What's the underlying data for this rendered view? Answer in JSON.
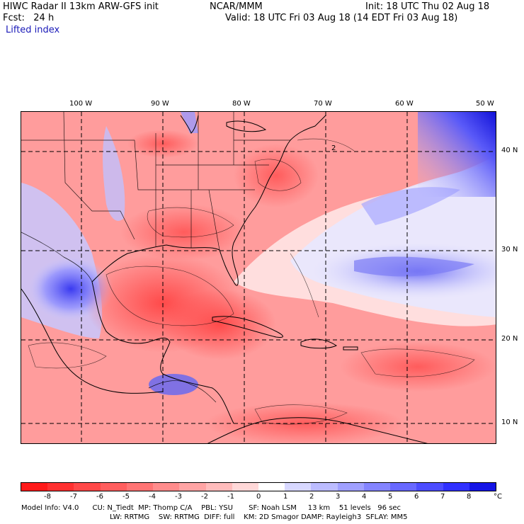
{
  "header": {
    "title": "HIWC Radar II 13km ARW-GFS init",
    "org": "NCAR/MMM",
    "init": "Init: 18 UTC Thu 02 Aug 18",
    "fcst": "Fcst:   24 h",
    "valid": "Valid: 18 UTC Fri 03 Aug 18 (14 EDT Fri 03 Aug 18)",
    "field": "Lifted index"
  },
  "map": {
    "lon_labels": [
      "100 W",
      "90 W",
      "80 W",
      "70 W",
      "60 W",
      "50 W"
    ],
    "lat_labels": [
      "40 N",
      "30 N",
      "20 N",
      "10 N"
    ],
    "contour_label": "2"
  },
  "colorbar": {
    "labels": [
      "-8",
      "-7",
      "-6",
      "-5",
      "-4",
      "-3",
      "-2",
      "-1",
      "0",
      "1",
      "2",
      "3",
      "4",
      "5",
      "6",
      "7",
      "8"
    ],
    "unit": "°C",
    "colors": [
      "#ff1a1a",
      "#ff3030",
      "#ff4848",
      "#ff5e5e",
      "#ff7474",
      "#ff8c8c",
      "#ffa4a4",
      "#ffbcbc",
      "#ffd8d8",
      "#ffffff",
      "#d8d8ff",
      "#bcbcff",
      "#a0a0ff",
      "#8484ff",
      "#6868ff",
      "#4c4cff",
      "#3030ff",
      "#1414e6"
    ]
  },
  "model_info": {
    "line1": "Model Info: V4.0      CU: N_Tiedt  MP: Thomp C/A    PBL: YSU       SF: Noah LSM     13 km    51 levels   96 sec",
    "line2": "LW: RRTMG    SW: RRTMG  DIFF: full    KM: 2D Smagor DAMP: Rayleigh3  SFLAY: MM5"
  }
}
